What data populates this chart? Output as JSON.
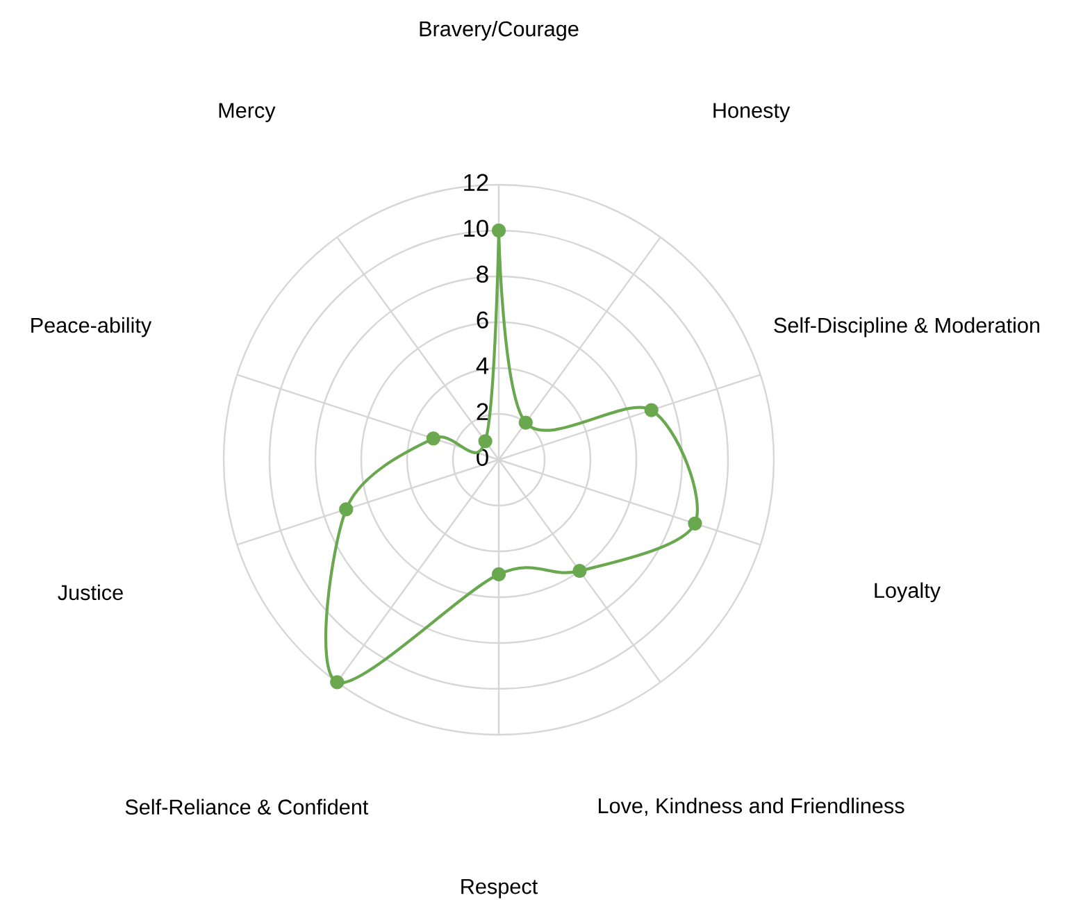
{
  "chart_data": {
    "type": "radar",
    "categories": [
      "Bravery/Courage",
      "Honesty",
      "Self-Discipline & Moderation",
      "Loyalty",
      "Love, Kindness and Friendliness",
      "Respect",
      "Self-Reliance & Confident",
      "Justice",
      "Peace-ability",
      "Mercy"
    ],
    "series": [
      {
        "color": "#6aa84f",
        "values": [
          10,
          2,
          7,
          9,
          6,
          5,
          12,
          7,
          3,
          1
        ]
      }
    ],
    "ylim": [
      0,
      12
    ],
    "yticks": [
      0,
      2,
      4,
      6,
      8,
      10,
      12
    ],
    "marker": "circle",
    "grid": true
  }
}
